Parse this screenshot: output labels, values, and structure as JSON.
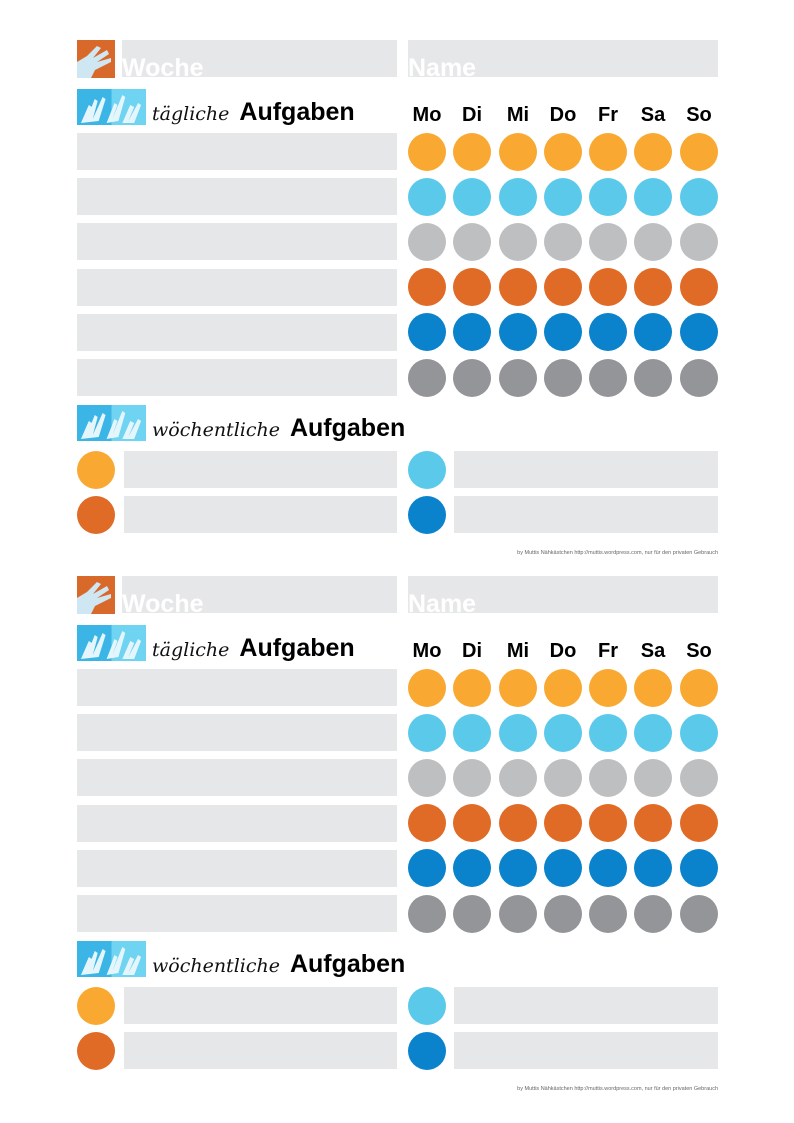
{
  "header": {
    "week_label": "Woche",
    "name_label": "Name"
  },
  "daily": {
    "script_label": "tägliche",
    "bold_label": "Aufgaben"
  },
  "weekly": {
    "script_label": "wöchentliche",
    "bold_label": "Aufgaben"
  },
  "days": [
    "Mo",
    "Di",
    "Mi",
    "Do",
    "Fr",
    "Sa",
    "So"
  ],
  "row_colors": [
    "#f9a932",
    "#5bc9ea",
    "#bdbfc1",
    "#e06b26",
    "#0a82cc",
    "#939598"
  ],
  "weekly_colors": {
    "left": [
      "#f9a932",
      "#e06b26"
    ],
    "right": [
      "#5bc9ea",
      "#0a82cc"
    ]
  },
  "field_color": "#e6e7e8",
  "footer": "by Muttis Nähkästchen http://muttis.wordpress.com, nur für den privaten Gebrauch",
  "sections": [
    0,
    1
  ]
}
